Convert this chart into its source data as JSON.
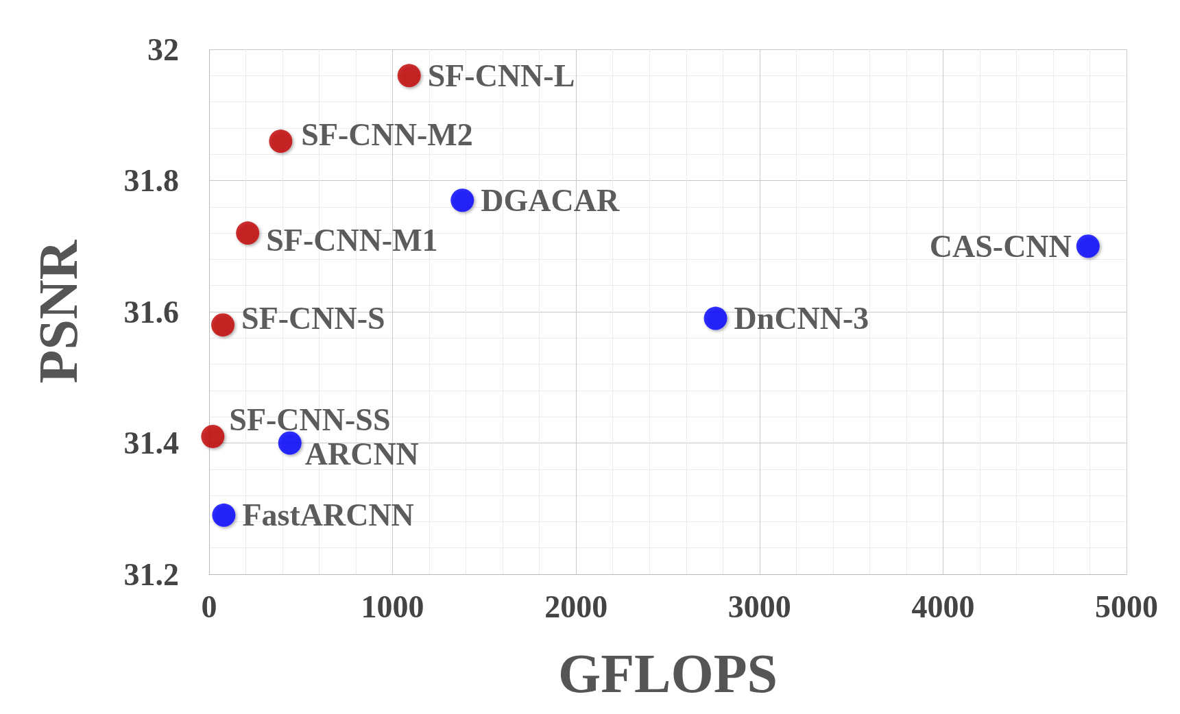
{
  "chart_data": {
    "type": "scatter",
    "xlabel": "GFLOPS",
    "ylabel": "PSNR",
    "xlim": [
      0,
      5000
    ],
    "xticks": [
      0,
      1000,
      2000,
      3000,
      4000,
      5000
    ],
    "ylim": [
      31.2,
      32
    ],
    "yticks": [
      31.2,
      31.4,
      31.6,
      31.8,
      32
    ],
    "grid": true,
    "marker": "circle",
    "series": [
      {
        "name": "SF-CNN-L",
        "color": "#c00000",
        "x": [
          1090
        ],
        "values": [
          31.96
        ]
      },
      {
        "name": "SF-CNN-M2",
        "color": "#c00000",
        "x": [
          390
        ],
        "values": [
          31.86
        ]
      },
      {
        "name": "DGACAR",
        "color": "#0000ff",
        "x": [
          1380
        ],
        "values": [
          31.77
        ]
      },
      {
        "name": "SF-CNN-M1",
        "color": "#c00000",
        "x": [
          210
        ],
        "values": [
          31.72
        ]
      },
      {
        "name": "CAS-CNN",
        "color": "#0000ff",
        "x": [
          4790
        ],
        "values": [
          31.7
        ]
      },
      {
        "name": "SF-CNN-S",
        "color": "#c00000",
        "x": [
          75
        ],
        "values": [
          31.58
        ]
      },
      {
        "name": "DnCNN-3",
        "color": "#0000ff",
        "x": [
          2760
        ],
        "values": [
          31.59
        ]
      },
      {
        "name": "SF-CNN-SS",
        "color": "#c00000",
        "x": [
          20
        ],
        "values": [
          31.41
        ]
      },
      {
        "name": "ARCNN",
        "color": "#0000ff",
        "x": [
          440
        ],
        "values": [
          31.4
        ]
      },
      {
        "name": "FastARCNN",
        "color": "#0000ff",
        "x": [
          80
        ],
        "values": [
          31.29
        ]
      }
    ]
  }
}
